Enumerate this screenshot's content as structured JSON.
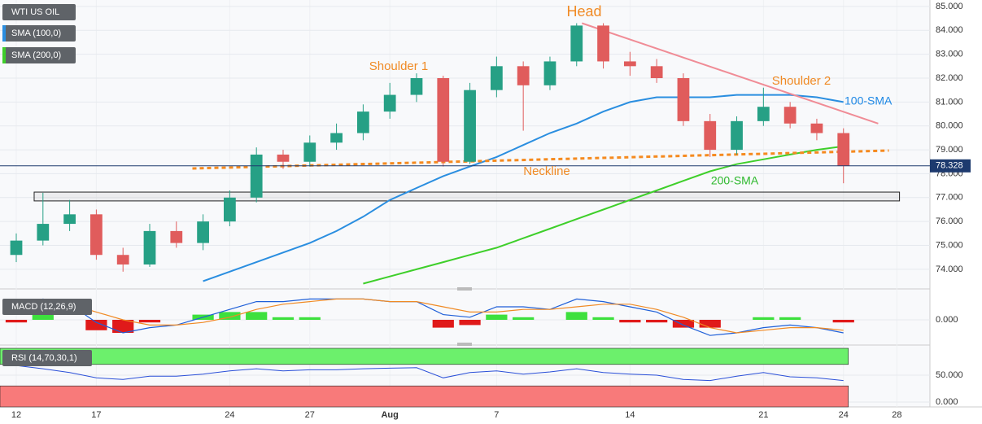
{
  "chart_data": [
    {
      "type": "candlestick",
      "title": "WTI US OIL",
      "x": [
        0,
        1,
        2,
        3,
        4,
        5,
        6,
        7,
        8,
        9,
        10,
        11,
        12,
        13,
        14,
        15,
        16,
        17,
        18,
        19,
        20,
        21,
        22,
        23,
        24,
        25,
        26,
        27,
        28,
        29,
        30,
        31
      ],
      "open": [
        74.6,
        75.2,
        75.9,
        76.3,
        74.6,
        74.2,
        75.6,
        75.1,
        76.0,
        77.0,
        78.8,
        78.5,
        79.3,
        79.7,
        80.6,
        81.3,
        82.0,
        78.5,
        81.5,
        82.5,
        81.7,
        82.7,
        84.2,
        82.7,
        82.5,
        82.0,
        80.2,
        79.0,
        80.2,
        80.8,
        80.1,
        79.7
      ],
      "high": [
        75.5,
        77.2,
        76.9,
        76.5,
        74.9,
        75.9,
        76.0,
        76.3,
        77.3,
        79.1,
        79.0,
        79.6,
        80.1,
        80.9,
        81.8,
        82.2,
        82.1,
        81.8,
        82.9,
        82.7,
        82.9,
        84.3,
        84.3,
        83.1,
        82.8,
        82.2,
        80.5,
        80.4,
        81.6,
        81.0,
        80.3,
        79.9
      ],
      "low": [
        74.3,
        75.0,
        75.6,
        74.4,
        73.9,
        74.1,
        74.9,
        74.8,
        75.8,
        76.8,
        78.2,
        78.3,
        79.0,
        79.4,
        80.3,
        81.0,
        78.3,
        78.4,
        81.2,
        79.8,
        81.5,
        82.5,
        82.4,
        82.1,
        81.8,
        80.0,
        78.7,
        78.8,
        80.0,
        79.9,
        79.4,
        77.6
      ],
      "close": [
        75.2,
        75.9,
        76.3,
        74.6,
        74.2,
        75.6,
        75.1,
        76.0,
        77.0,
        78.8,
        78.5,
        79.3,
        79.7,
        80.6,
        81.3,
        82.0,
        78.5,
        81.5,
        82.5,
        81.7,
        82.7,
        84.2,
        82.7,
        82.5,
        82.0,
        80.2,
        79.0,
        80.2,
        80.8,
        80.1,
        79.7,
        78.33
      ],
      "up_color": "#26a085",
      "down_color": "#e05c5c",
      "series": [
        {
          "name": "SMA (200,0)",
          "color": "#3ecf2a",
          "values": [
            null,
            null,
            null,
            null,
            null,
            null,
            null,
            null,
            null,
            null,
            null,
            null,
            null,
            73.4,
            73.7,
            74.0,
            74.3,
            74.6,
            74.9,
            75.3,
            75.7,
            76.1,
            76.5,
            76.9,
            77.3,
            77.7,
            78.1,
            78.4,
            78.6,
            78.8,
            79.0,
            79.15
          ]
        },
        {
          "name": "SMA (100,0)",
          "color": "#2a8ee0",
          "values": [
            null,
            null,
            null,
            null,
            null,
            null,
            null,
            73.5,
            73.9,
            74.3,
            74.7,
            75.1,
            75.6,
            76.2,
            76.9,
            77.4,
            77.9,
            78.3,
            78.7,
            79.2,
            79.7,
            80.1,
            80.6,
            81.0,
            81.2,
            81.2,
            81.2,
            81.3,
            81.3,
            81.3,
            81.2,
            81.0
          ]
        }
      ],
      "last_price": 78.328,
      "trendline": {
        "color": "#f08c96",
        "x": [
          21.2,
          32.3
        ],
        "y": [
          84.3,
          80.1
        ]
      },
      "neckline": {
        "color": "#f58a1f",
        "x": [
          6.6,
          32.7
        ],
        "y": [
          78.22,
          78.97
        ]
      },
      "zone": {
        "x": [
          0.67,
          33.1
        ],
        "y": [
          77.23,
          76.86
        ]
      },
      "annotations": [
        {
          "text": "Head",
          "color": "#f08a24"
        },
        {
          "text": "Shoulder 1",
          "color": "#f08a24"
        },
        {
          "text": "Shoulder 2",
          "color": "#f08a24"
        },
        {
          "text": "Neckline",
          "color": "#f08a24"
        },
        {
          "text": "200-SMA",
          "color": "#2db82d"
        },
        {
          "text": "100-SMA",
          "color": "#1e88e5"
        }
      ],
      "xlim": [
        -0.61,
        34.24
      ],
      "xticks": [
        {
          "value": 0,
          "label": "12"
        },
        {
          "value": 3,
          "label": "17"
        },
        {
          "value": 8,
          "label": "24"
        },
        {
          "value": 11,
          "label": "27"
        },
        {
          "value": 14,
          "label": "Aug"
        },
        {
          "value": 18,
          "label": "7"
        },
        {
          "value": 23,
          "label": "14"
        },
        {
          "value": 28,
          "label": "21"
        },
        {
          "value": 31,
          "label": "24"
        },
        {
          "value": 33,
          "label": "28"
        }
      ],
      "ylim": [
        73.28,
        85.27
      ],
      "yticks": [
        {
          "value": 74,
          "label": "74.000"
        },
        {
          "value": 75,
          "label": "75.000"
        },
        {
          "value": 76,
          "label": "76.000"
        },
        {
          "value": 77,
          "label": "77.000"
        },
        {
          "value": 78,
          "label": "78.000"
        },
        {
          "value": 79,
          "label": "79.000"
        },
        {
          "value": 80,
          "label": "80.000"
        },
        {
          "value": 81,
          "label": "81.000"
        },
        {
          "value": 82,
          "label": "82.000"
        },
        {
          "value": 83,
          "label": "83.000"
        },
        {
          "value": 84,
          "label": "84.000"
        },
        {
          "value": 85,
          "label": "85.000"
        }
      ],
      "grid": true
    },
    {
      "type": "macd",
      "title": "MACD (12,26,9)",
      "series": [
        {
          "color": "#1e5fd8",
          "values": [
            0.2,
            0.8,
            0.6,
            -0.1,
            -0.5,
            -0.3,
            -0.2,
            0.1,
            0.4,
            0.7,
            0.7,
            0.8,
            0.8,
            0.8,
            0.7,
            0.7,
            0.2,
            0.1,
            0.5,
            0.5,
            0.4,
            0.8,
            0.7,
            0.5,
            0.3,
            -0.2,
            -0.6,
            -0.5,
            -0.3,
            -0.2,
            -0.3,
            -0.5
          ]
        },
        {
          "color": "#f08a24",
          "values": [
            0.3,
            0.4,
            0.6,
            0.3,
            0.0,
            -0.2,
            -0.2,
            -0.1,
            0.1,
            0.4,
            0.6,
            0.7,
            0.8,
            0.8,
            0.7,
            0.7,
            0.5,
            0.3,
            0.3,
            0.4,
            0.4,
            0.5,
            0.6,
            0.6,
            0.4,
            0.1,
            -0.3,
            -0.5,
            -0.4,
            -0.3,
            -0.3,
            -0.4
          ]
        }
      ],
      "histogram": [
        -0.1,
        0.4,
        0.0,
        -0.4,
        -0.5,
        -0.1,
        0.0,
        0.2,
        0.3,
        0.3,
        0.1,
        0.1,
        0.0,
        0.0,
        0.0,
        0.0,
        -0.3,
        -0.2,
        0.2,
        0.1,
        0.0,
        0.3,
        0.1,
        -0.1,
        -0.1,
        -0.3,
        -0.3,
        0.0,
        0.1,
        0.1,
        0.0,
        -0.1
      ],
      "up_color": "#3de03d",
      "down_color": "#e01a1a",
      "ylim": [
        -1,
        1
      ],
      "yticks": [
        {
          "value": 0,
          "label": "0.000"
        }
      ]
    },
    {
      "type": "rsi",
      "title": "RSI (14,70,30,1)",
      "series": [
        {
          "color": "#2a4fd8",
          "values": [
            68,
            62,
            55,
            45,
            42,
            48,
            48,
            52,
            58,
            62,
            58,
            60,
            60,
            62,
            63,
            64,
            45,
            55,
            58,
            52,
            56,
            62,
            55,
            52,
            50,
            42,
            40,
            48,
            55,
            47,
            45,
            40
          ]
        }
      ],
      "levels": [
        70,
        30
      ],
      "level_colors": [
        "#6cf06c",
        "#f87a7a"
      ],
      "ylim": [
        0,
        100
      ],
      "yticks": [
        {
          "value": 0,
          "label": "0.000"
        },
        {
          "value": 50,
          "label": "50.000"
        }
      ]
    }
  ]
}
